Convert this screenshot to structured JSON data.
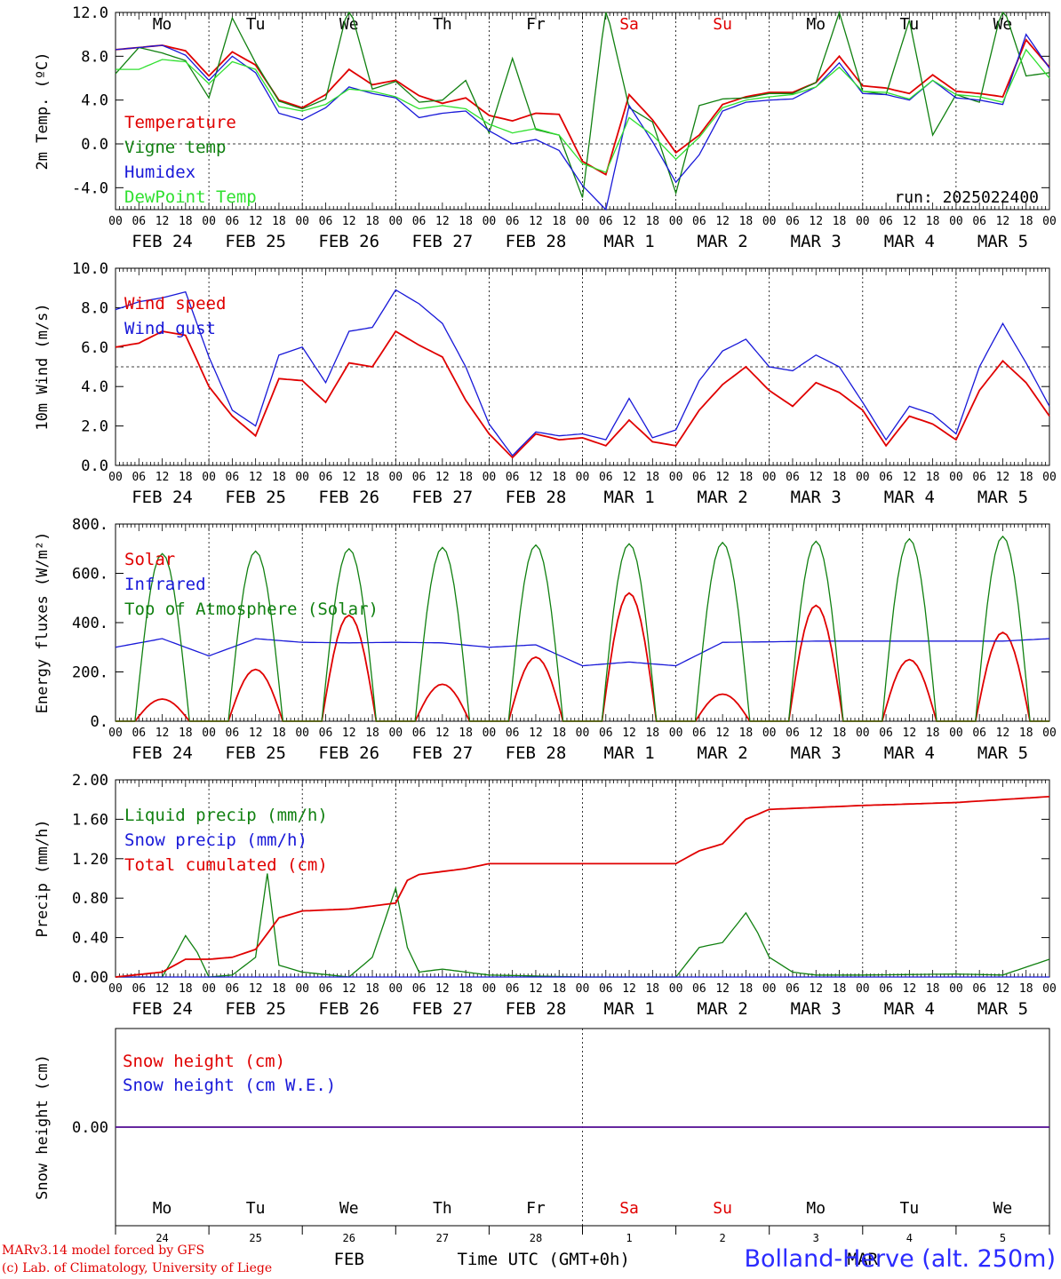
{
  "colors": {
    "red": "#e00000",
    "darkgreen": "#108010",
    "blue": "#1818d8",
    "lightgreen": "#30e030",
    "axis": "#000000",
    "grid": "#000000"
  },
  "days": [
    {
      "dow": "Mo",
      "day": "24",
      "date": "FEB 24",
      "weekend": false
    },
    {
      "dow": "Tu",
      "day": "25",
      "date": "FEB 25",
      "weekend": false
    },
    {
      "dow": "We",
      "day": "26",
      "date": "FEB 26",
      "weekend": false
    },
    {
      "dow": "Th",
      "day": "27",
      "date": "FEB 27",
      "weekend": false
    },
    {
      "dow": "Fr",
      "day": "28",
      "date": "FEB 28",
      "weekend": false
    },
    {
      "dow": "Sa",
      "day": "1",
      "date": "MAR  1",
      "weekend": true
    },
    {
      "dow": "Su",
      "day": "2",
      "date": "MAR  2",
      "weekend": true
    },
    {
      "dow": "Mo",
      "day": "3",
      "date": "MAR  3",
      "weekend": false
    },
    {
      "dow": "Tu",
      "day": "4",
      "date": "MAR  4",
      "weekend": false
    },
    {
      "dow": "We",
      "day": "5",
      "date": "MAR  5",
      "weekend": false
    }
  ],
  "hour_ticks": [
    "00",
    "06",
    "12",
    "18"
  ],
  "run_label": "run: 2025022400",
  "footer": {
    "credit_line1": "MARv3.14 model forced by GFS",
    "credit_line2": "(c) Lab. of Climatology, University of Liege",
    "month_feb": "FEB",
    "month_mar": "MAR",
    "time_axis": "Time UTC (GMT+0h)",
    "station": "Bolland-Herve (alt. 250m)"
  },
  "chart_data": [
    {
      "type": "line",
      "ylabel": "2m Temp. (ºC)",
      "ylim": [
        -6,
        12
      ],
      "yticks": [
        12,
        8,
        4,
        0,
        -4
      ],
      "ytick_labels": [
        "12.0",
        "8.0",
        "4.0",
        "0.0",
        "-4.0"
      ],
      "ref_line": 0,
      "x_hours": [
        0,
        6,
        12,
        18,
        24,
        30,
        36,
        42,
        48,
        54,
        60,
        66,
        72,
        78,
        84,
        90,
        96,
        102,
        108,
        114,
        120,
        126,
        132,
        138,
        144,
        150,
        156,
        162,
        168,
        174,
        180,
        186,
        192,
        198,
        204,
        210,
        216,
        222,
        228,
        234,
        240
      ],
      "series": [
        {
          "name": "Temperature",
          "color": "red",
          "values": [
            8.6,
            8.8,
            9.0,
            8.5,
            6.2,
            8.4,
            7.2,
            4.0,
            3.3,
            4.5,
            6.8,
            5.4,
            5.8,
            4.4,
            3.7,
            4.2,
            2.6,
            2.1,
            2.8,
            2.7,
            -1.6,
            -2.8,
            4.5,
            2.2,
            -0.8,
            0.8,
            3.6,
            4.3,
            4.7,
            4.7,
            5.6,
            8.0,
            5.3,
            5.1,
            4.6,
            6.3,
            4.8,
            4.6,
            4.3,
            9.5,
            7.0
          ]
        },
        {
          "name": "Vigne temp",
          "color": "darkgreen",
          "values": [
            6.4,
            8.8,
            8.3,
            7.6,
            4.2,
            11.5,
            7.4,
            3.9,
            3.2,
            4.1,
            12.8,
            5.0,
            5.7,
            3.8,
            4.0,
            5.8,
            1.0,
            7.8,
            1.3,
            0.8,
            -4.9,
            12.5,
            3.3,
            2.0,
            -4.5,
            3.5,
            4.1,
            4.2,
            4.6,
            4.6,
            5.6,
            12.0,
            4.8,
            4.5,
            11.3,
            0.8,
            4.5,
            3.8,
            12.7,
            6.2,
            6.5
          ]
        },
        {
          "name": "Humidex",
          "color": "blue",
          "values": [
            8.6,
            8.8,
            9.0,
            8.1,
            5.8,
            8.0,
            6.5,
            2.8,
            2.2,
            3.3,
            5.2,
            4.6,
            4.2,
            2.4,
            2.8,
            3.0,
            1.2,
            0.0,
            0.4,
            -0.6,
            -3.8,
            -6.0,
            3.5,
            0.2,
            -3.5,
            -1.0,
            3.0,
            3.8,
            4.0,
            4.1,
            5.2,
            7.4,
            4.6,
            4.5,
            4.0,
            5.8,
            4.2,
            4.0,
            3.6,
            10.0,
            6.9
          ]
        },
        {
          "name": "DewPoint Temp",
          "color": "lightgreen",
          "values": [
            6.8,
            6.8,
            7.7,
            7.5,
            5.5,
            7.5,
            6.8,
            3.4,
            3.0,
            3.6,
            5.0,
            4.8,
            4.3,
            3.2,
            3.5,
            3.2,
            1.8,
            1.0,
            1.4,
            0.8,
            -1.8,
            -2.6,
            2.4,
            0.8,
            -1.4,
            0.6,
            3.3,
            4.0,
            4.3,
            4.5,
            5.2,
            7.0,
            4.8,
            4.7,
            4.1,
            5.8,
            4.5,
            4.3,
            3.8,
            8.6,
            6.0
          ]
        }
      ],
      "legend": [
        {
          "label": "Temperature",
          "color": "red"
        },
        {
          "label": "Vigne temp",
          "color": "darkgreen"
        },
        {
          "label": "Humidex",
          "color": "blue"
        },
        {
          "label": "DewPoint Temp",
          "color": "lightgreen"
        }
      ]
    },
    {
      "type": "line",
      "ylabel": "10m Wind (m/s)",
      "ylim": [
        0,
        10
      ],
      "yticks": [
        10,
        8,
        6,
        4,
        2,
        0
      ],
      "ytick_labels": [
        "10.0",
        "8.0",
        "6.0",
        "4.0",
        "2.0",
        "0.0"
      ],
      "ref_line": 5,
      "x_hours": [
        0,
        6,
        12,
        18,
        24,
        30,
        36,
        42,
        48,
        54,
        60,
        66,
        72,
        78,
        84,
        90,
        96,
        102,
        108,
        114,
        120,
        126,
        132,
        138,
        144,
        150,
        156,
        162,
        168,
        174,
        180,
        186,
        192,
        198,
        204,
        210,
        216,
        222,
        228,
        234,
        240
      ],
      "series": [
        {
          "name": "Wind speed",
          "color": "red",
          "values": [
            6.0,
            6.2,
            6.8,
            6.6,
            4.0,
            2.5,
            1.5,
            4.4,
            4.3,
            3.2,
            5.2,
            5.0,
            6.8,
            6.1,
            5.5,
            3.3,
            1.6,
            0.4,
            1.6,
            1.3,
            1.4,
            1.0,
            2.3,
            1.2,
            1.0,
            2.8,
            4.1,
            5.0,
            3.8,
            3.0,
            4.2,
            3.7,
            2.8,
            1.0,
            2.5,
            2.1,
            1.3,
            3.8,
            5.3,
            4.2,
            2.5
          ]
        },
        {
          "name": "Wind gust",
          "color": "blue",
          "values": [
            7.9,
            8.3,
            8.5,
            8.8,
            5.5,
            2.8,
            2.0,
            5.6,
            6.0,
            4.2,
            6.8,
            7.0,
            8.9,
            8.2,
            7.2,
            5.0,
            2.1,
            0.5,
            1.7,
            1.5,
            1.6,
            1.3,
            3.4,
            1.4,
            1.8,
            4.3,
            5.8,
            6.4,
            5.0,
            4.8,
            5.6,
            5.0,
            3.2,
            1.3,
            3.0,
            2.6,
            1.6,
            5.0,
            7.2,
            5.2,
            3.0
          ]
        }
      ],
      "legend": [
        {
          "label": "Wind speed",
          "color": "red"
        },
        {
          "label": "Wind gust",
          "color": "blue"
        }
      ]
    },
    {
      "type": "line",
      "ylabel": "Energy fluxes (W/m²)",
      "ylim": [
        0,
        800
      ],
      "yticks": [
        800,
        600,
        400,
        200,
        0
      ],
      "ytick_labels": [
        "800.",
        "600.",
        "400.",
        "200.",
        "0."
      ],
      "solar_noon_hour": 12,
      "series": [
        {
          "name": "Solar",
          "color": "red",
          "daily_peaks": [
            90,
            210,
            430,
            150,
            260,
            520,
            110,
            470,
            250,
            360
          ]
        },
        {
          "name": "Infrared",
          "color": "blue",
          "x_hours": [
            0,
            12,
            24,
            36,
            48,
            60,
            72,
            84,
            96,
            108,
            120,
            132,
            144,
            156,
            168,
            180,
            192,
            204,
            216,
            228,
            240
          ],
          "values": [
            300,
            335,
            265,
            335,
            320,
            318,
            320,
            318,
            300,
            310,
            225,
            240,
            225,
            320,
            322,
            325,
            325,
            325,
            325,
            325,
            335
          ]
        },
        {
          "name": "Top of Atmosphere (Solar)",
          "color": "darkgreen",
          "daily_peaks": [
            680,
            690,
            700,
            705,
            715,
            720,
            725,
            730,
            740,
            750
          ]
        }
      ],
      "legend": [
        {
          "label": "Solar",
          "color": "red"
        },
        {
          "label": "Infrared",
          "color": "blue"
        },
        {
          "label": "Top of Atmosphere (Solar)",
          "color": "darkgreen"
        }
      ]
    },
    {
      "type": "line",
      "ylabel": "Precip (mm/h)",
      "ylim": [
        0,
        2
      ],
      "yticks": [
        2,
        1.6,
        1.2,
        0.8,
        0.4,
        0
      ],
      "ytick_labels": [
        "2.00",
        "1.60",
        "1.20",
        "0.80",
        "0.40",
        "0.00"
      ],
      "series": [
        {
          "name": "Liquid precip (mm/h)",
          "color": "darkgreen",
          "x_hours": [
            0,
            12,
            15,
            18,
            21,
            24,
            30,
            36,
            39,
            42,
            48,
            60,
            66,
            72,
            75,
            78,
            84,
            90,
            96,
            120,
            144,
            150,
            156,
            162,
            165,
            168,
            174,
            180,
            192,
            216,
            228,
            240
          ],
          "values": [
            0,
            0,
            0.2,
            0.42,
            0.25,
            0,
            0.02,
            0.2,
            1.05,
            0.12,
            0.05,
            0,
            0.2,
            0.9,
            0.3,
            0.05,
            0.08,
            0.05,
            0.02,
            0,
            0,
            0.3,
            0.35,
            0.65,
            0.45,
            0.2,
            0.05,
            0.02,
            0.02,
            0.03,
            0.02,
            0.18
          ]
        },
        {
          "name": "Snow precip (mm/h)",
          "color": "blue",
          "x_hours": [
            0,
            240
          ],
          "values": [
            0,
            0
          ]
        },
        {
          "name": "Total cumulated (cm)",
          "color": "red",
          "x_hours": [
            0,
            12,
            18,
            24,
            30,
            36,
            42,
            48,
            60,
            72,
            75,
            78,
            90,
            96,
            120,
            144,
            150,
            156,
            162,
            168,
            180,
            192,
            216,
            240
          ],
          "values": [
            0,
            0.05,
            0.18,
            0.18,
            0.2,
            0.28,
            0.6,
            0.67,
            0.69,
            0.75,
            0.98,
            1.04,
            1.1,
            1.15,
            1.15,
            1.15,
            1.28,
            1.35,
            1.6,
            1.7,
            1.72,
            1.74,
            1.77,
            1.83
          ]
        }
      ],
      "legend": [
        {
          "label": "Liquid precip (mm/h)",
          "color": "darkgreen"
        },
        {
          "label": "Snow precip (mm/h)",
          "color": "blue"
        },
        {
          "label": "Total cumulated (cm)",
          "color": "red"
        }
      ]
    },
    {
      "type": "line",
      "ylabel": "Snow height (cm)",
      "ylim": [
        -1,
        1
      ],
      "yticks": [
        0
      ],
      "ytick_labels": [
        "0.00"
      ],
      "series": [
        {
          "name": "Snow height (cm)",
          "color": "red",
          "x_hours": [
            0,
            240
          ],
          "values": [
            0,
            0
          ]
        },
        {
          "name": "Snow height (cm W.E.)",
          "color": "blue",
          "x_hours": [
            0,
            240
          ],
          "values": [
            0,
            0
          ]
        }
      ],
      "legend": [
        {
          "label": "Snow height (cm)",
          "color": "red"
        },
        {
          "label": "Snow height (cm W.E.)",
          "color": "blue"
        }
      ]
    }
  ]
}
